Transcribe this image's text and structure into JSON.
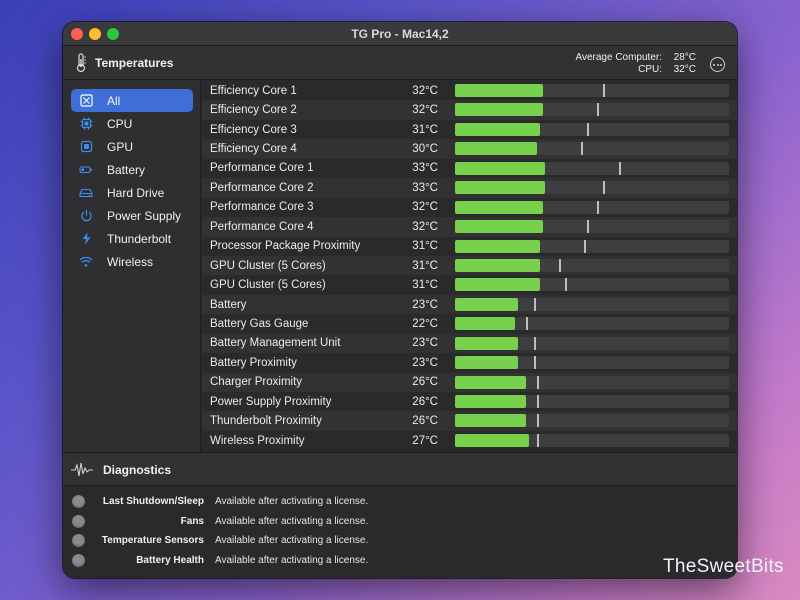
{
  "window": {
    "title": "TG Pro - Mac14,2"
  },
  "header": {
    "title": "Temperatures",
    "avg_label": "Average Computer:",
    "avg_value": "28°C",
    "cpu_label": "CPU:",
    "cpu_value": "32°C",
    "more_icon": "ellipsis-circle-icon"
  },
  "sidebar": {
    "items": [
      {
        "label": "All",
        "icon": "all-sensors-icon",
        "active": true
      },
      {
        "label": "CPU",
        "icon": "cpu-icon"
      },
      {
        "label": "GPU",
        "icon": "gpu-icon"
      },
      {
        "label": "Battery",
        "icon": "battery-icon"
      },
      {
        "label": "Hard Drive",
        "icon": "hard-drive-icon"
      },
      {
        "label": "Power Supply",
        "icon": "power-icon"
      },
      {
        "label": "Thunderbolt",
        "icon": "bolt-icon"
      },
      {
        "label": "Wireless",
        "icon": "wifi-icon"
      }
    ]
  },
  "sensors": [
    {
      "name": "Efficiency Core 1",
      "temp": "32°C",
      "value": 32,
      "max": 54
    },
    {
      "name": "Efficiency Core 2",
      "temp": "32°C",
      "value": 32,
      "max": 52
    },
    {
      "name": "Efficiency Core 3",
      "temp": "31°C",
      "value": 31,
      "max": 48
    },
    {
      "name": "Efficiency Core 4",
      "temp": "30°C",
      "value": 30,
      "max": 46
    },
    {
      "name": "Performance Core 1",
      "temp": "33°C",
      "value": 33,
      "max": 60
    },
    {
      "name": "Performance Core 2",
      "temp": "33°C",
      "value": 33,
      "max": 54
    },
    {
      "name": "Performance Core 3",
      "temp": "32°C",
      "value": 32,
      "max": 52
    },
    {
      "name": "Performance Core 4",
      "temp": "32°C",
      "value": 32,
      "max": 48
    },
    {
      "name": "Processor Package Proximity",
      "temp": "31°C",
      "value": 31,
      "max": 47
    },
    {
      "name": "GPU Cluster (5 Cores)",
      "temp": "31°C",
      "value": 31,
      "max": 38
    },
    {
      "name": "GPU Cluster (5 Cores)",
      "temp": "31°C",
      "value": 31,
      "max": 40
    },
    {
      "name": "Battery",
      "temp": "23°C",
      "value": 23,
      "max": 29
    },
    {
      "name": "Battery Gas Gauge",
      "temp": "22°C",
      "value": 22,
      "max": 26
    },
    {
      "name": "Battery Management Unit",
      "temp": "23°C",
      "value": 23,
      "max": 29
    },
    {
      "name": "Battery Proximity",
      "temp": "23°C",
      "value": 23,
      "max": 29
    },
    {
      "name": "Charger Proximity",
      "temp": "26°C",
      "value": 26,
      "max": 30
    },
    {
      "name": "Power Supply Proximity",
      "temp": "26°C",
      "value": 26,
      "max": 30
    },
    {
      "name": "Thunderbolt Proximity",
      "temp": "26°C",
      "value": 26,
      "max": 30
    },
    {
      "name": "Wireless Proximity",
      "temp": "27°C",
      "value": 27,
      "max": 30
    }
  ],
  "bar_scale_max_c": 100,
  "diagnostics": {
    "title": "Diagnostics",
    "items": [
      {
        "label": "Last Shutdown/Sleep",
        "value": "Available after activating a license."
      },
      {
        "label": "Fans",
        "value": "Available after activating a license."
      },
      {
        "label": "Temperature Sensors",
        "value": "Available after activating a license."
      },
      {
        "label": "Battery Health",
        "value": "Available after activating a license."
      }
    ]
  },
  "watermark": "TheSweetBits",
  "colors": {
    "accent": "#3d6fd6",
    "bar": "#77d14d",
    "icon": "#3d8cf0"
  }
}
